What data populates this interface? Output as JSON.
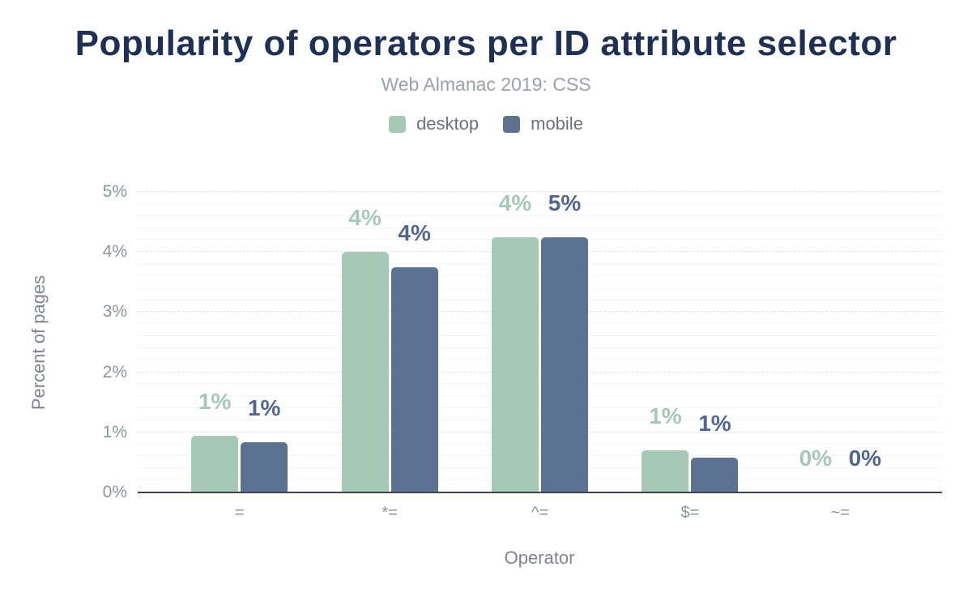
{
  "header": {
    "title": "Popularity of operators per ID attribute selector",
    "subtitle": "Web Almanac 2019: CSS"
  },
  "legend": [
    {
      "label": "desktop",
      "color": "#a5c9b6"
    },
    {
      "label": "mobile",
      "color": "#5d7191"
    }
  ],
  "axes": {
    "xlabel": "Operator",
    "ylabel": "Percent of pages"
  },
  "chart_data": {
    "type": "bar",
    "title": "Popularity of operators per ID attribute selector",
    "subtitle": "Web Almanac 2019: CSS",
    "categories": [
      "=",
      "*=",
      "^=",
      "$=",
      "~="
    ],
    "series": [
      {
        "name": "desktop",
        "color": "#a5c9b6",
        "label_color": "#a5c9b6",
        "values": [
          0.94,
          4.0,
          4.3,
          0.7,
          0.0
        ],
        "labels": [
          "1%",
          "4%",
          "4%",
          "1%",
          "0%"
        ]
      },
      {
        "name": "mobile",
        "color": "#5d7191",
        "label_color": "#52678e",
        "values": [
          0.83,
          3.75,
          4.95,
          0.58,
          0.0
        ],
        "labels": [
          "1%",
          "4%",
          "5%",
          "1%",
          "0%"
        ]
      }
    ],
    "xlabel": "Operator",
    "ylabel": "Percent of pages",
    "ylim": [
      0,
      5
    ],
    "y_ticks": [
      "0%",
      "1%",
      "2%",
      "3%",
      "4%",
      "5%"
    ],
    "grid": {
      "minor_step": 0.2,
      "major_step": 1,
      "grid_on": true
    },
    "legend_position": "top"
  }
}
